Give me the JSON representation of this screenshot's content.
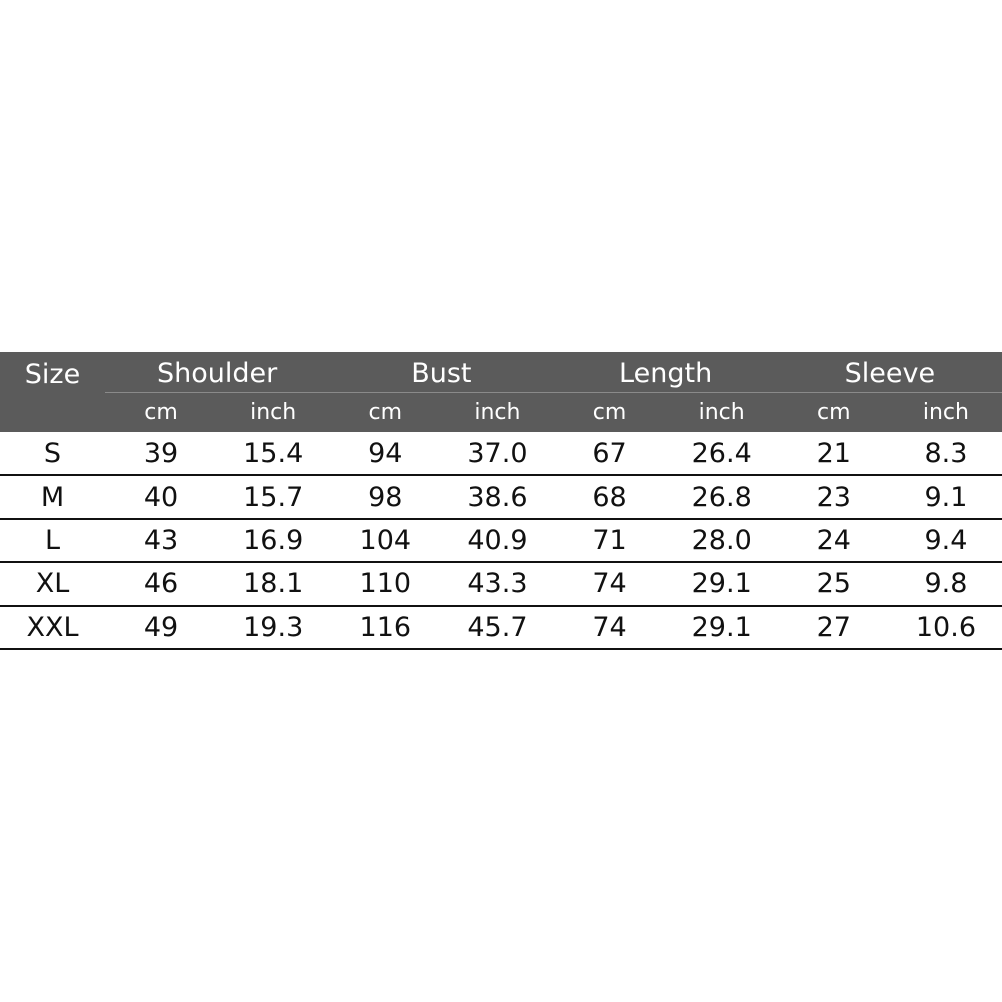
{
  "table": {
    "size_header": "Size",
    "groups": [
      "Shoulder",
      "Bust",
      "Length",
      "Sleeve"
    ],
    "units": [
      "cm",
      "inch",
      "cm",
      "inch",
      "cm",
      "inch",
      "cm",
      "inch"
    ],
    "rows": [
      [
        "S",
        "39",
        "15.4",
        "94",
        "37.0",
        "67",
        "26.4",
        "21",
        "8.3"
      ],
      [
        "M",
        "40",
        "15.7",
        "98",
        "38.6",
        "68",
        "26.8",
        "23",
        "9.1"
      ],
      [
        "L",
        "43",
        "16.9",
        "104",
        "40.9",
        "71",
        "28.0",
        "24",
        "9.4"
      ],
      [
        "XL",
        "46",
        "18.1",
        "110",
        "43.3",
        "74",
        "29.1",
        "25",
        "9.8"
      ],
      [
        "XXL",
        "49",
        "19.3",
        "116",
        "45.7",
        "74",
        "29.1",
        "27",
        "10.6"
      ]
    ]
  }
}
